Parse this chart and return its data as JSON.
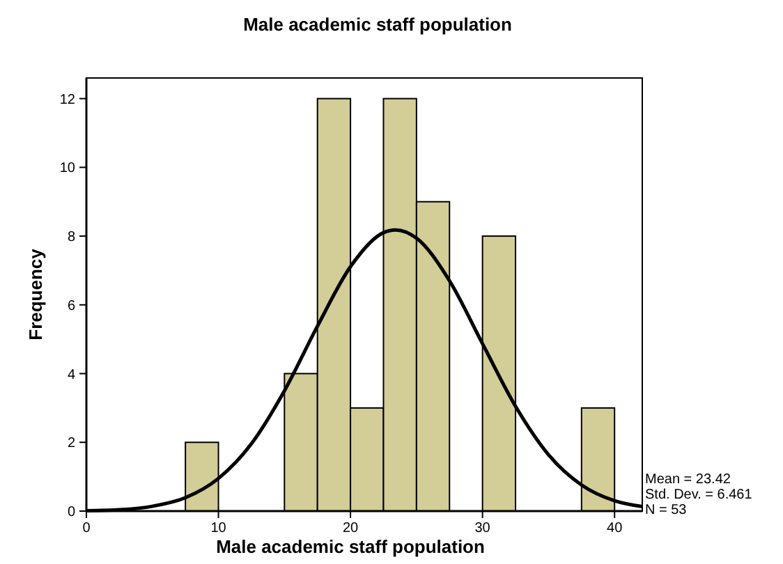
{
  "chart_data": {
    "type": "histogram",
    "title": "Male academic staff population",
    "xlabel": "Male academic staff population",
    "ylabel": "Frequency",
    "bins": [
      7.5,
      10,
      12.5,
      15,
      17.5,
      20,
      22.5,
      25,
      27.5,
      30,
      32.5,
      35,
      37.5,
      40
    ],
    "values": [
      2,
      0,
      0,
      4,
      12,
      3,
      12,
      9,
      0,
      8,
      0,
      0,
      3
    ],
    "color": "#d3cd97",
    "series": [
      {
        "type": "line",
        "color": "#000000",
        "x": [
          0,
          2.5,
          5,
          7.5,
          10,
          12.5,
          15,
          17.5,
          20,
          22.5,
          23.42,
          25,
          27.5,
          30,
          32.5,
          35,
          37.5,
          40,
          42.1
        ],
        "values": [
          0.01,
          0.04,
          0.14,
          0.39,
          0.95,
          1.96,
          3.5,
          5.38,
          7.11,
          8.1,
          8.18,
          7.94,
          6.7,
          4.87,
          3.05,
          1.64,
          0.76,
          0.3,
          0.13
        ]
      }
    ],
    "xlim": [
      0,
      42.1
    ],
    "xticks": [
      0,
      10,
      20,
      30,
      40
    ],
    "ylim": [
      0,
      12.6
    ],
    "yticks": [
      0,
      2,
      4,
      6,
      8,
      10,
      12
    ],
    "annotations": [
      "Mean = 23.42",
      "Std. Dev. = 6.461",
      "N = 53"
    ]
  }
}
